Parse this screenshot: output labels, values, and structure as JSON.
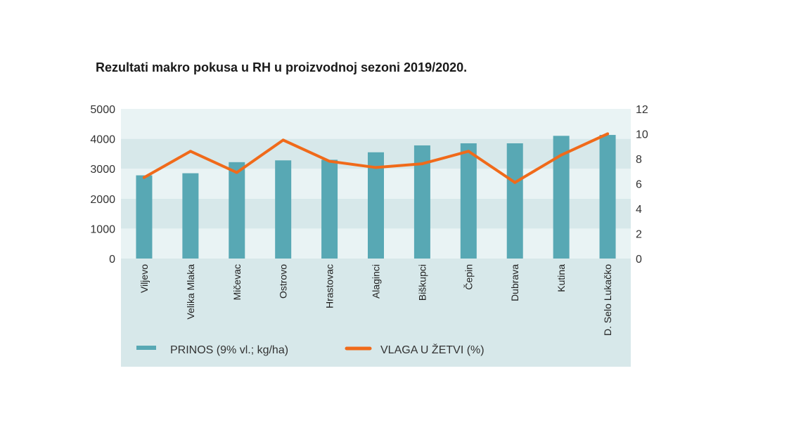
{
  "chart_data": {
    "type": "bar",
    "title": "Rezultati makro pokusa u RH u proizvodnoj sezoni 2019/2020.",
    "categories": [
      "Viljevo",
      "Velika Mlaka",
      "Mičevac",
      "Ostrovo",
      "Hrastovac",
      "Alaginci",
      "Biškupci",
      "Čepin",
      "Dubrava",
      "Kutina",
      "D. Selo Lukačko"
    ],
    "series": [
      {
        "name": "PRINOS (9% vl.; kg/ha)",
        "type": "bar",
        "axis": "left",
        "color": "#58a8b4",
        "values": [
          2780,
          2850,
          3220,
          3280,
          3300,
          3550,
          3780,
          3850,
          3850,
          4100,
          4130
        ]
      },
      {
        "name": "VLAGA U ŽETVI (%)",
        "type": "line",
        "axis": "right",
        "color": "#f06a1a",
        "values": [
          6.5,
          8.6,
          6.9,
          9.5,
          7.8,
          7.3,
          7.6,
          8.6,
          6.1,
          8.3,
          10.0
        ]
      }
    ],
    "y_left": {
      "ticks": [
        "0",
        "1000",
        "2000",
        "3000",
        "4000",
        "5000"
      ],
      "ylim": [
        0,
        5000
      ]
    },
    "y_right": {
      "ticks": [
        "0",
        "2",
        "4",
        "6",
        "8",
        "10",
        "12"
      ],
      "ylim": [
        0,
        12
      ]
    },
    "background_bands": [
      "#e9f3f4",
      "#d7e8ea"
    ],
    "legend_background": "#d7e8ea",
    "legend_position": "bottom",
    "grid": false
  }
}
